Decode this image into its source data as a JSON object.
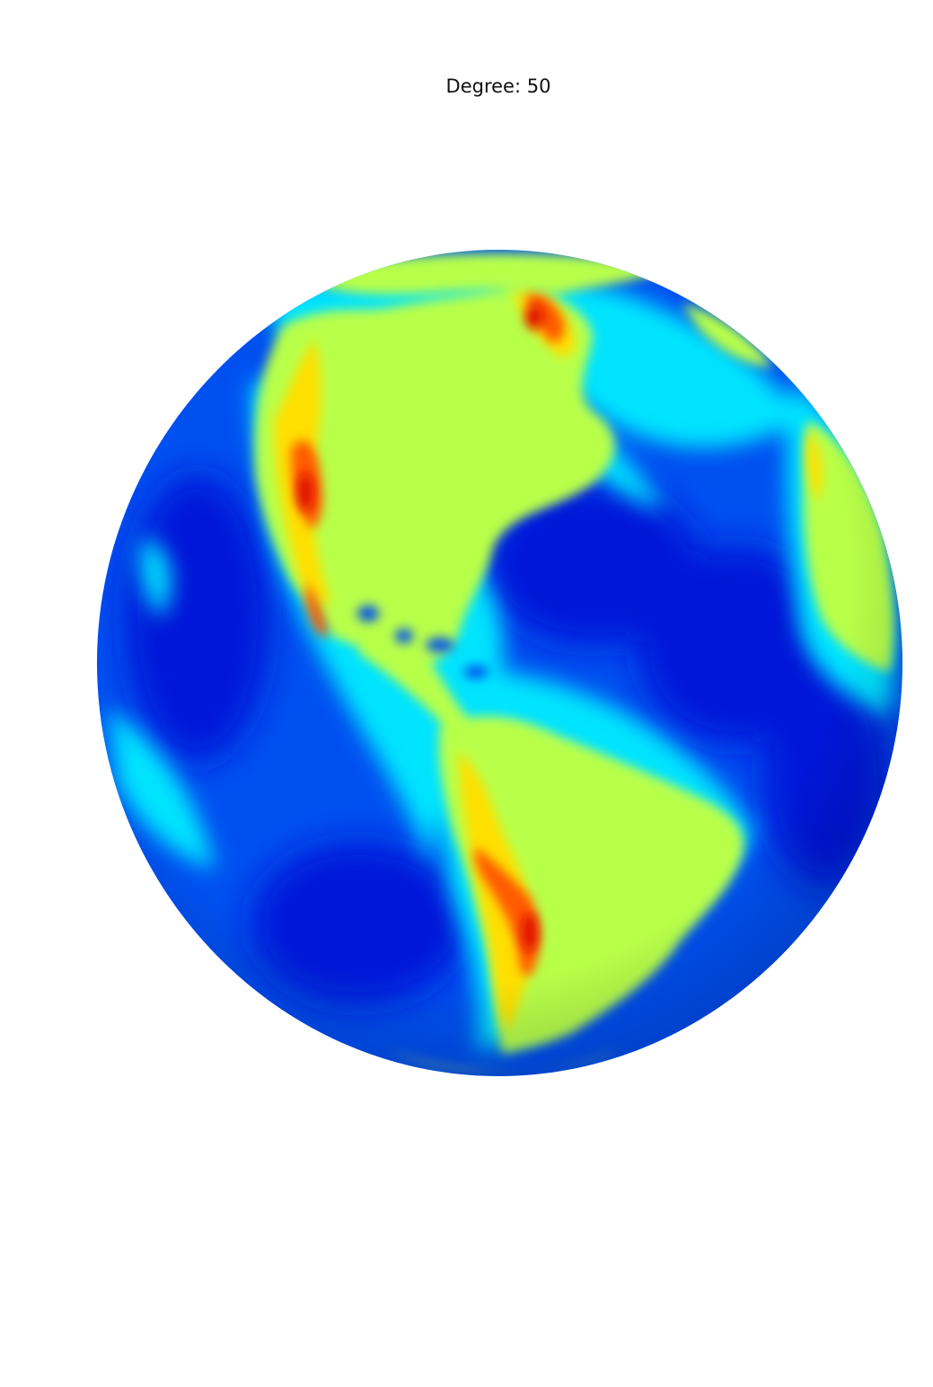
{
  "figure": {
    "title": "Degree: 50"
  },
  "globe": {
    "icon": "earth-globe-icon",
    "colormap": "jet",
    "colors": {
      "ocean_deep": "#0018d8",
      "ocean": "#0050f0",
      "shelf": "#00e4ff",
      "land": "#b8ff4a",
      "highland": "#ffe000",
      "mountain": "#ff5a00",
      "peak": "#e01000"
    }
  }
}
